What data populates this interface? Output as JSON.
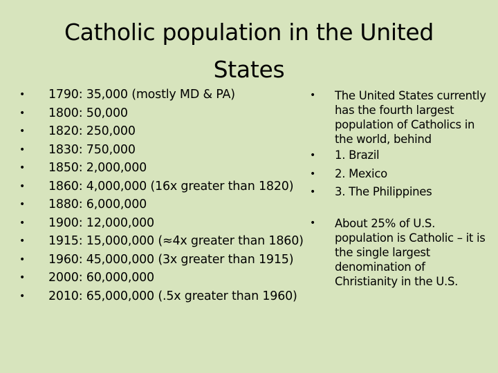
{
  "slide": {
    "title": "Catholic population in the United States",
    "bullet_symbol": "•",
    "left_items": [
      "1790: 35,000 (mostly MD & PA)",
      "1800: 50,000",
      "1820: 250,000",
      "1830: 750,000",
      "1850: 2,000,000",
      "1860: 4,000,000 (16x greater than 1820)",
      "1880: 6,000,000",
      "1900: 12,000,000",
      "1915: 15,000,000 (≈4x greater than 1860)",
      "1960: 45,000,000 (3x greater than 1915)",
      "2000: 60,000,000",
      "2010: 65,000,000 (.5x greater than 1960)"
    ],
    "right_items": [
      "The United States currently has the fourth largest population of Catholics in the world, behind",
      "1. Brazil",
      "2. Mexico",
      "3. The Philippines",
      "About 25% of U.S. population is Catholic – it is the single largest denomination of Christianity in the U.S."
    ]
  }
}
